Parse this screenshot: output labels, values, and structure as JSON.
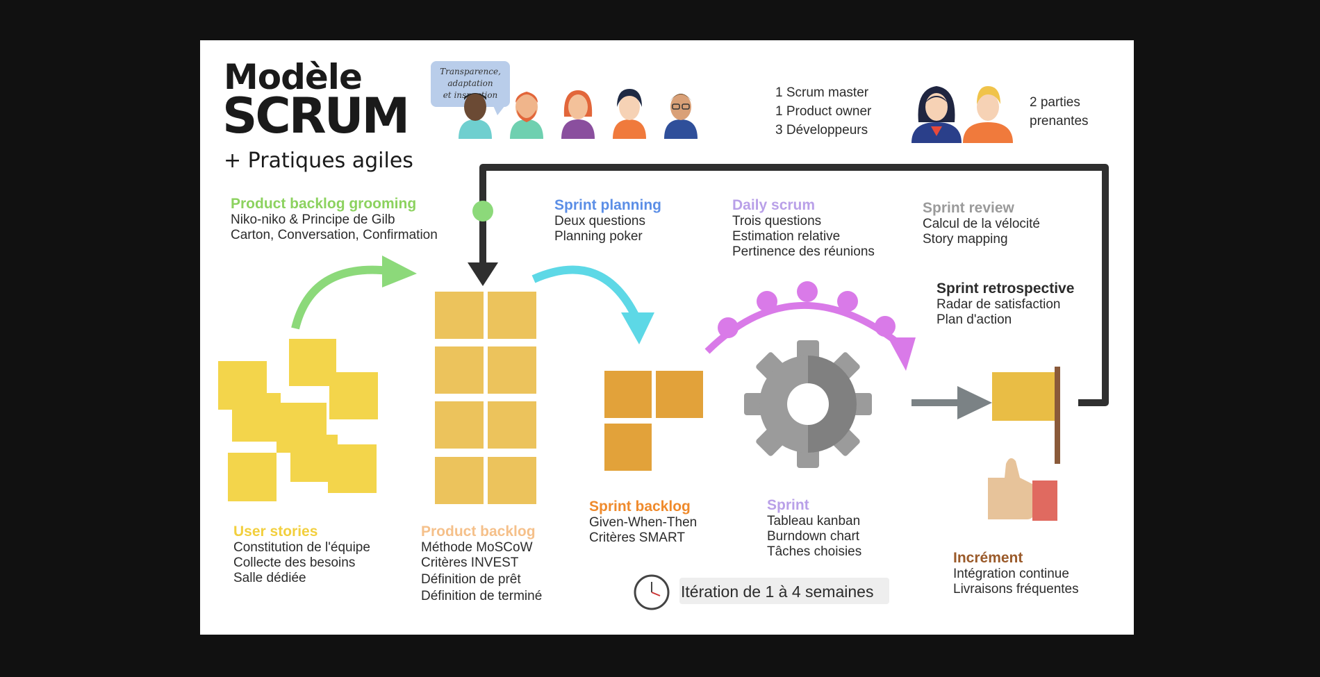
{
  "title": {
    "line1": "Modèle",
    "line2": "SCRUM",
    "line3": "+ Pratiques agiles"
  },
  "speech_bubble": [
    "Transparence,",
    "adaptation",
    "et inspection"
  ],
  "team": {
    "lines": [
      "1 Scrum master",
      "1 Product owner",
      "3 Développeurs"
    ],
    "stakeholders": [
      "2 parties",
      "prenantes"
    ]
  },
  "sections": {
    "grooming": {
      "title": "Product backlog grooming",
      "color": "#8cd25f",
      "lines": [
        "Niko-niko & Principe de Gilb",
        "Carton, Conversation, Confirmation"
      ]
    },
    "sprint_planning": {
      "title": "Sprint planning",
      "color": "#5b8ee6",
      "lines": [
        "Deux questions",
        "Planning poker"
      ]
    },
    "daily_scrum": {
      "title": "Daily scrum",
      "color": "#b9a0e8",
      "lines": [
        "Trois questions",
        "Estimation relative",
        "Pertinence des réunions"
      ]
    },
    "sprint_review": {
      "title": "Sprint review",
      "color": "#9a9a9a",
      "lines": [
        "Calcul de la vélocité",
        "Story mapping"
      ]
    },
    "sprint_retrospective": {
      "title": "Sprint retrospective",
      "color": "#2b2b2b",
      "lines": [
        "Radar de satisfaction",
        "Plan d'action"
      ]
    },
    "user_stories": {
      "title": "User stories",
      "color": "#f2cf3e",
      "lines": [
        "Constitution de l'équipe",
        "Collecte des besoins",
        "Salle dédiée"
      ]
    },
    "product_backlog": {
      "title": "Product backlog",
      "color": "#f5c08a",
      "lines": [
        "Méthode MoSCoW",
        "Critères INVEST",
        "Définition de prêt",
        "Définition de terminé"
      ]
    },
    "sprint_backlog": {
      "title": "Sprint backlog",
      "color": "#ef8a2c",
      "lines": [
        "Given-When-Then",
        "Critères SMART"
      ]
    },
    "sprint": {
      "title": "Sprint",
      "color": "#b9a0e8",
      "lines": [
        "Tableau kanban",
        "Burndown chart",
        "Tâches choisies"
      ]
    },
    "increment": {
      "title": "Incrément",
      "color": "#9a5a2a",
      "lines": [
        "Intégration continue",
        "Livraisons fréquentes"
      ]
    }
  },
  "iteration_label": "Itération de 1 à 4 semaines",
  "colors": {
    "background": "#111111",
    "card": "#ffffff",
    "sticky_yellow": "#f3d54b",
    "sticky_tan": "#ecc35c",
    "sticky_orange": "#e2a23a",
    "arrow_green": "#8cd97a",
    "arrow_cyan": "#5dd8e6",
    "arrow_magenta": "#d97ae8",
    "loop_dark": "#2f2f2f",
    "gear_gray": "#9b9b9b"
  }
}
